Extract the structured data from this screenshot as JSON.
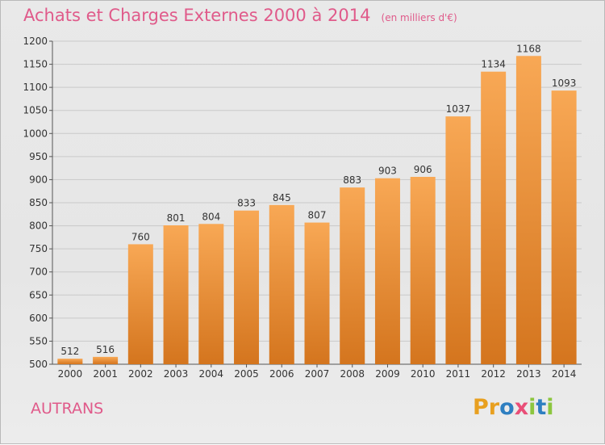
{
  "title": "Achats et Charges Externes 2000 à 2014",
  "unit_note": "(en milliers d'€)",
  "commune": "AUTRANS",
  "logo": {
    "letters": [
      "P",
      "r",
      "o",
      "x",
      "i",
      "t",
      "i"
    ],
    "colors": [
      "#e8a020",
      "#e8a020",
      "#2e7fc1",
      "#e94e77",
      "#8cc63f",
      "#2e7fc1",
      "#8cc63f"
    ]
  },
  "chart_data": {
    "type": "bar",
    "categories": [
      "2000",
      "2001",
      "2002",
      "2003",
      "2004",
      "2005",
      "2006",
      "2007",
      "2008",
      "2009",
      "2010",
      "2011",
      "2012",
      "2013",
      "2014"
    ],
    "values": [
      512,
      516,
      760,
      801,
      804,
      833,
      845,
      807,
      883,
      903,
      906,
      1037,
      1134,
      1168,
      1093
    ],
    "ylim": [
      500,
      1200
    ],
    "yticks": [
      500,
      550,
      600,
      650,
      700,
      750,
      800,
      850,
      900,
      950,
      1000,
      1050,
      1100,
      1150,
      1200
    ],
    "grid": true,
    "bar_color_top": "#f8a855",
    "bar_color_bottom": "#d4751e",
    "title": "Achats et Charges Externes 2000 à 2014",
    "xlabel": "",
    "ylabel": ""
  }
}
